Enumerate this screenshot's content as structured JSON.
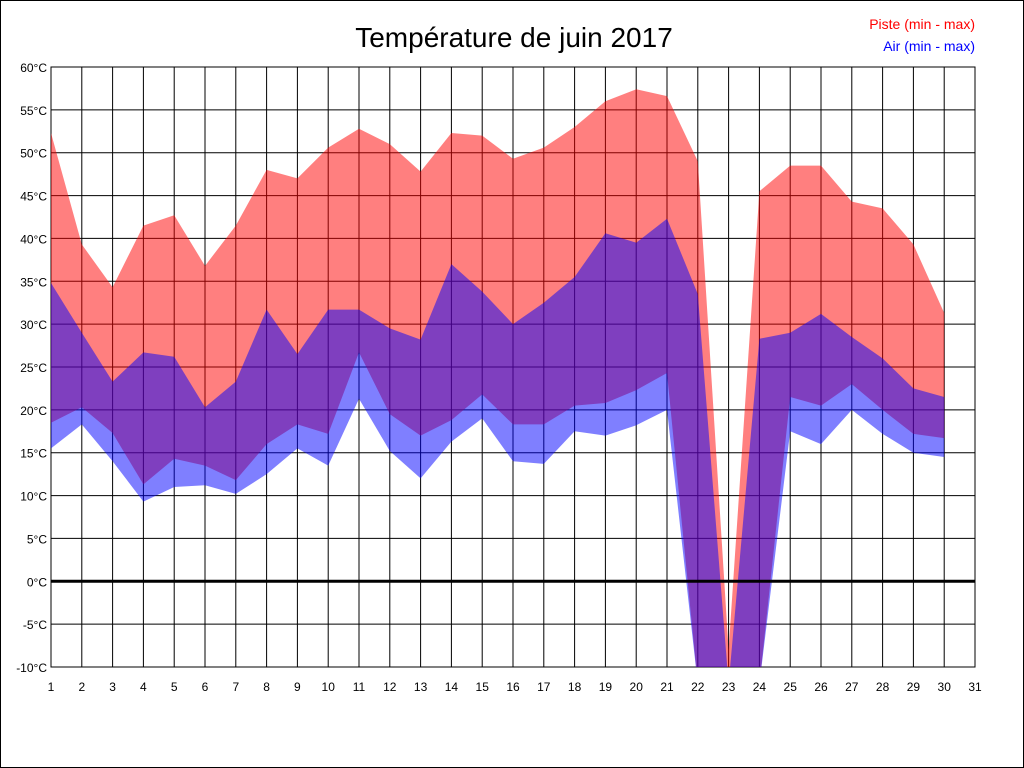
{
  "chart_data": {
    "type": "area",
    "title": "Température de juin 2017",
    "xlabel": "",
    "ylabel": "",
    "x_ticks": [
      "1",
      "2",
      "3",
      "4",
      "5",
      "6",
      "7",
      "8",
      "9",
      "10",
      "11",
      "12",
      "13",
      "14",
      "15",
      "16",
      "17",
      "18",
      "19",
      "20",
      "21",
      "22",
      "23",
      "24",
      "25",
      "26",
      "27",
      "28",
      "29",
      "30",
      "31"
    ],
    "xlim": [
      1,
      31
    ],
    "ylim": [
      -10,
      60
    ],
    "y_ticks": [
      "60°C",
      "55°C",
      "50°C",
      "45°C",
      "40°C",
      "35°C",
      "30°C",
      "25°C",
      "20°C",
      "15°C",
      "10°C",
      "5°C",
      "0°C",
      "-5°C",
      "-10°C"
    ],
    "y_tick_values": [
      60,
      55,
      50,
      45,
      40,
      35,
      30,
      25,
      20,
      15,
      10,
      5,
      0,
      -5,
      -10
    ],
    "grid": true,
    "legend_position": "top-right",
    "x": [
      1,
      2,
      3,
      4,
      5,
      6,
      7,
      8,
      9,
      10,
      11,
      12,
      13,
      14,
      15,
      16,
      17,
      18,
      19,
      20,
      21,
      22,
      23,
      24,
      25,
      26,
      27,
      28,
      29,
      30
    ],
    "series": [
      {
        "name": "Piste (min - max)",
        "color": "#ff0000",
        "fill": "rgba(255,0,0,0.5)",
        "max": [
          52.3,
          39.3,
          34.3,
          41.5,
          42.7,
          36.8,
          41.5,
          48.0,
          47.0,
          50.6,
          52.8,
          51.0,
          47.8,
          52.3,
          52.0,
          49.3,
          50.6,
          53.0,
          56.0,
          57.4,
          56.6,
          49.0,
          -8.0,
          45.5,
          48.5,
          48.5,
          44.3,
          43.5,
          39.3,
          31.3
        ],
        "min": [
          18.5,
          20.3,
          17.3,
          11.3,
          14.3,
          13.5,
          11.8,
          16.0,
          18.3,
          17.2,
          26.7,
          19.5,
          17.0,
          18.8,
          21.8,
          18.3,
          18.3,
          20.5,
          20.8,
          22.3,
          24.3,
          -12,
          -12,
          -12,
          21.5,
          20.5,
          23.0,
          20.0,
          17.2,
          16.7
        ]
      },
      {
        "name": "Air (min - max)",
        "color": "#0000ff",
        "fill": "rgba(0,0,255,0.5)",
        "max": [
          34.8,
          29.0,
          23.3,
          26.7,
          26.2,
          20.3,
          23.3,
          31.7,
          26.5,
          31.7,
          31.7,
          29.5,
          28.2,
          37.0,
          33.8,
          30.0,
          32.5,
          35.5,
          40.6,
          39.5,
          42.3,
          33.5,
          -12,
          28.3,
          29.0,
          31.2,
          28.5,
          26.0,
          22.5,
          21.5
        ],
        "min": [
          15.5,
          18.3,
          14.0,
          9.3,
          11.0,
          11.2,
          10.2,
          12.5,
          15.5,
          13.5,
          21.3,
          15.2,
          12.0,
          16.3,
          19.0,
          14.0,
          13.7,
          17.5,
          17.0,
          18.2,
          20.0,
          -12,
          -12,
          -12,
          17.5,
          16.0,
          20.0,
          17.2,
          15.0,
          14.5
        ]
      }
    ]
  }
}
